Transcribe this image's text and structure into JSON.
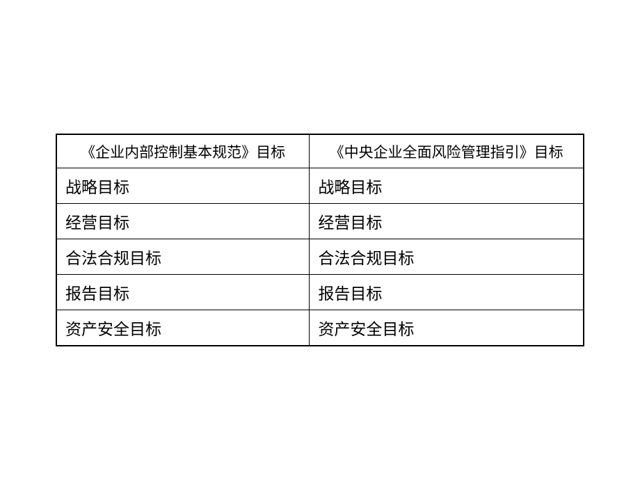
{
  "table": {
    "type": "table",
    "background_color": "#ffffff",
    "border_color": "#000000",
    "text_color": "#000000",
    "header_fontsize": 21,
    "cell_fontsize": 23,
    "column_widths": [
      "48%",
      "52%"
    ],
    "columns": [
      "《企业内部控制基本规范》目标",
      "《中央企业全面风险管理指引》目标"
    ],
    "rows": [
      [
        "战略目标",
        "战略目标"
      ],
      [
        "经营目标",
        "经营目标"
      ],
      [
        "合法合规目标",
        "合法合规目标"
      ],
      [
        "报告目标",
        "报告目标"
      ],
      [
        "资产安全目标",
        "资产安全目标"
      ]
    ]
  }
}
